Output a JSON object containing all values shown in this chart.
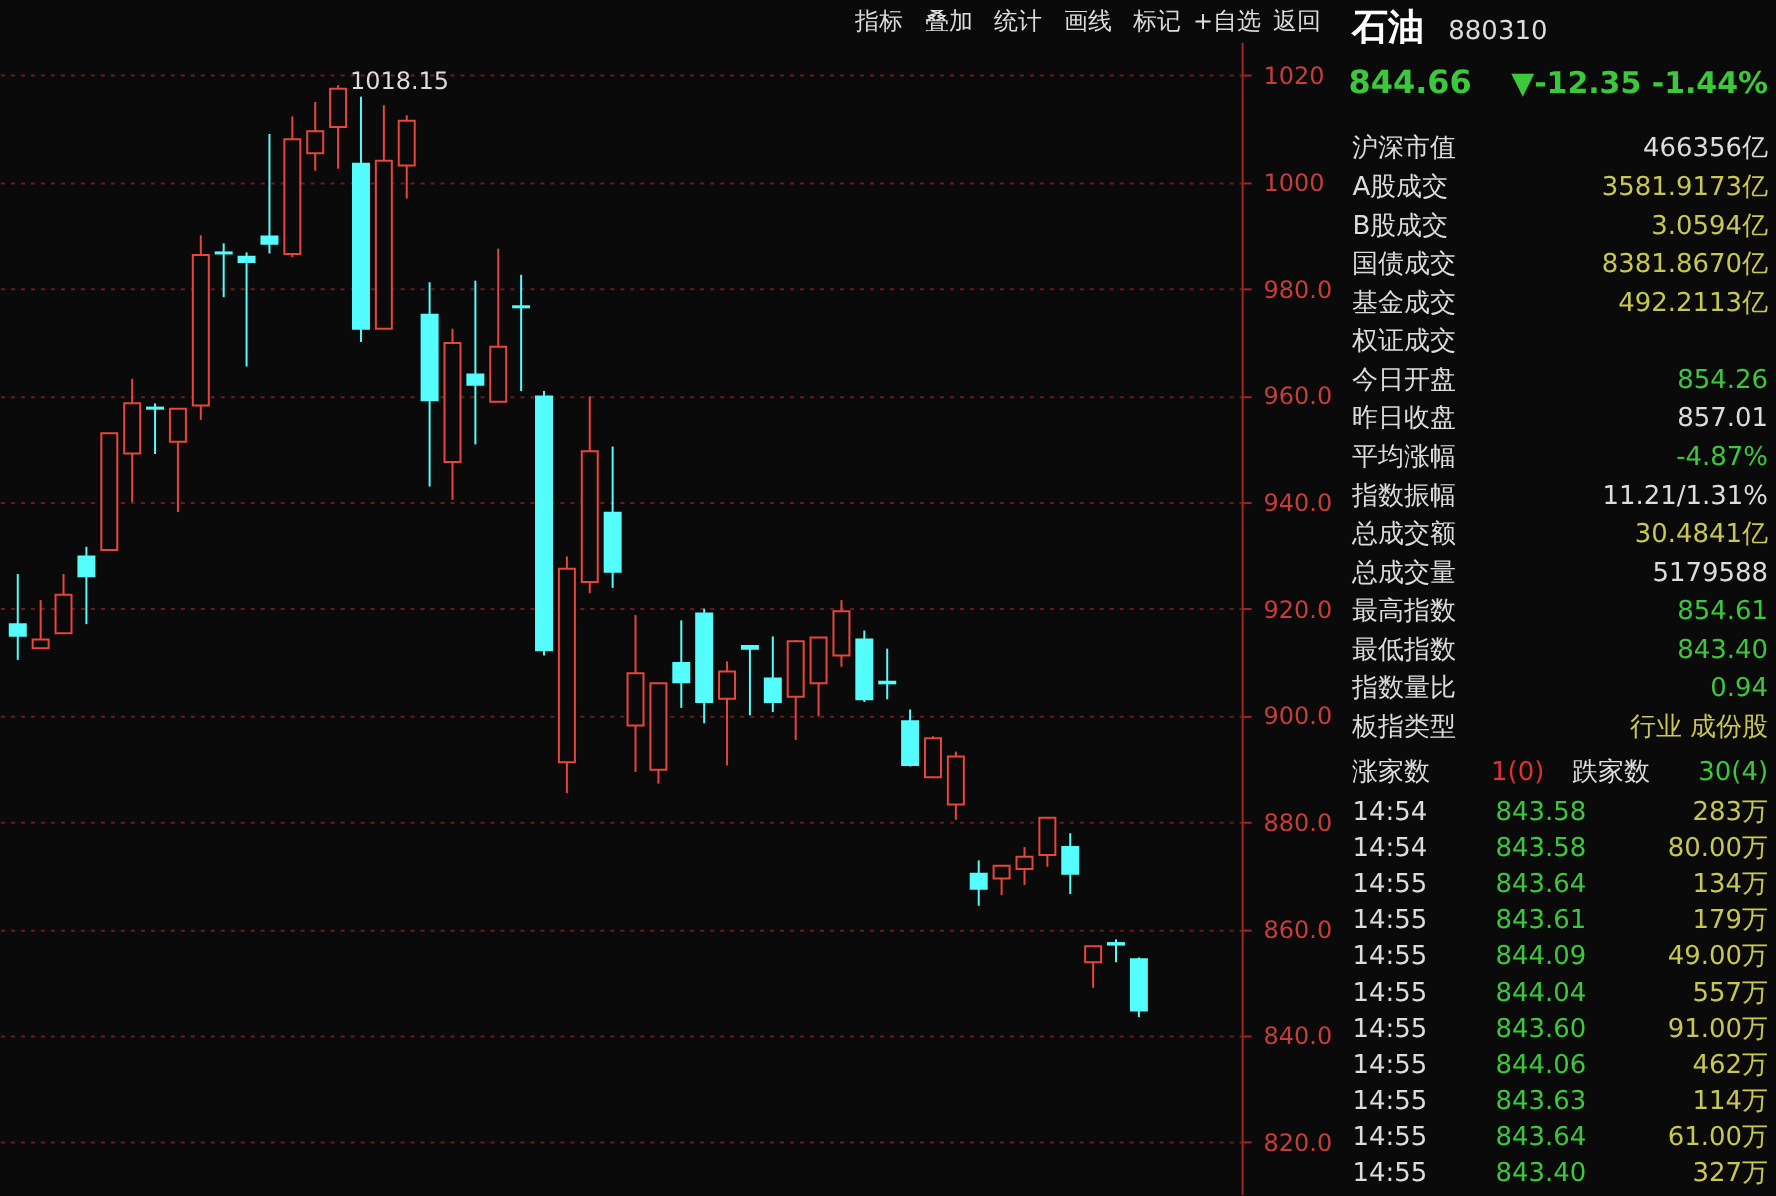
{
  "chart_data": [
    {
      "type": "candlestick",
      "categories": [
        null,
        null,
        null,
        null,
        null,
        null,
        null,
        null,
        null,
        null,
        null,
        null,
        null,
        null,
        null,
        null,
        null,
        null,
        null,
        null,
        null,
        null,
        null,
        null,
        null,
        null,
        null,
        null,
        null,
        null,
        null,
        null,
        null,
        null,
        null,
        null,
        null,
        null,
        null,
        null,
        null,
        null,
        null,
        null,
        null,
        null,
        null,
        null,
        null,
        null
      ],
      "ohlc": [
        [
          917.1,
          926.5,
          910.4,
          914.9
        ],
        [
          912.6,
          921.6,
          912.6,
          914.2
        ],
        [
          915.4,
          926.5,
          915.4,
          922.6
        ],
        [
          929.8,
          931.6,
          917.1,
          926.1
        ],
        [
          931.0,
          952.9,
          931.0,
          952.9
        ],
        [
          949.1,
          963.1,
          940.0,
          958.5
        ],
        [
          957.7,
          958.5,
          949.0,
          957.5
        ],
        [
          951.3,
          957.5,
          938.1,
          957.5
        ],
        [
          958.1,
          990.0,
          955.4,
          986.3
        ],
        [
          986.8,
          988.5,
          978.4,
          986.6
        ],
        [
          986.0,
          986.8,
          965.4,
          985.0
        ],
        [
          989.8,
          1009.0,
          986.6,
          988.4
        ],
        [
          986.5,
          1012.3,
          985.9,
          1008.0
        ],
        [
          1005.4,
          1015.0,
          1002.1,
          1009.5
        ],
        [
          1010.3,
          1018.15,
          1002.5,
          1017.5
        ],
        [
          1003.4,
          1016.0,
          970.0,
          972.5
        ],
        [
          972.5,
          1014.4,
          972.5,
          1004.0
        ],
        [
          1003.1,
          1012.5,
          996.9,
          1011.5
        ],
        [
          975.1,
          981.2,
          942.9,
          959.1
        ],
        [
          947.5,
          972.5,
          940.4,
          969.8
        ],
        [
          963.9,
          981.5,
          950.8,
          962.0
        ],
        [
          958.8,
          987.5,
          958.8,
          969.1
        ],
        [
          976.7,
          982.6,
          960.8,
          976.5
        ],
        [
          959.8,
          960.8,
          911.2,
          912.2
        ],
        [
          891.2,
          929.8,
          885.4,
          927.5
        ],
        [
          925.0,
          959.8,
          922.9,
          949.5
        ],
        [
          938.0,
          950.4,
          923.9,
          926.9
        ],
        [
          898.1,
          918.8,
          889.4,
          907.9
        ],
        [
          889.8,
          906.0,
          887.2,
          906.0
        ],
        [
          909.8,
          917.8,
          901.4,
          906.2
        ],
        [
          919.1,
          920.0,
          898.5,
          902.5
        ],
        [
          903.1,
          910.1,
          890.6,
          908.2
        ],
        [
          913.0,
          913.1,
          900.0,
          912.5
        ],
        [
          906.9,
          914.8,
          900.6,
          902.5
        ],
        [
          903.5,
          914.1,
          895.4,
          913.9
        ],
        [
          906.0,
          914.6,
          899.8,
          914.6
        ],
        [
          911.2,
          921.6,
          909.1,
          919.5
        ],
        [
          914.2,
          915.9,
          902.5,
          903.0
        ],
        [
          906.3,
          912.5,
          903.0,
          906.0
        ],
        [
          898.9,
          901.1,
          890.4,
          890.7
        ],
        [
          888.4,
          896.1,
          888.2,
          895.7
        ],
        [
          883.3,
          893.2,
          880.4,
          892.3
        ],
        [
          870.3,
          872.8,
          864.3,
          867.5
        ],
        [
          869.4,
          871.8,
          866.3,
          871.8
        ],
        [
          871.2,
          875.3,
          868.2,
          873.5
        ],
        [
          873.8,
          880.8,
          871.6,
          880.8
        ],
        [
          875.3,
          877.9,
          866.5,
          870.3
        ],
        [
          853.7,
          856.7,
          848.9,
          856.7
        ],
        [
          857.3,
          858.0,
          853.7,
          857.01
        ],
        [
          854.26,
          854.61,
          843.4,
          844.66
        ]
      ],
      "colors": [
        "#54fcfc",
        "#e8453c",
        "#e8453c",
        "#54fcfc",
        "#e8453c",
        "#e8453c",
        "#54fcfc",
        "#e8453c",
        "#e8453c",
        "#54fcfc",
        "#54fcfc",
        "#54fcfc",
        "#e8453c",
        "#e8453c",
        "#e8453c",
        "#54fcfc",
        "#e8453c",
        "#e8453c",
        "#54fcfc",
        "#e8453c",
        "#54fcfc",
        "#e8453c",
        "#54fcfc",
        "#54fcfc",
        "#e8453c",
        "#e8453c",
        "#54fcfc",
        "#e8453c",
        "#e8453c",
        "#54fcfc",
        "#54fcfc",
        "#e8453c",
        "#54fcfc",
        "#54fcfc",
        "#e8453c",
        "#e8453c",
        "#e8453c",
        "#54fcfc",
        "#54fcfc",
        "#54fcfc",
        "#e8453c",
        "#e8453c",
        "#54fcfc",
        "#e8453c",
        "#e8453c",
        "#e8453c",
        "#54fcfc",
        "#e8453c",
        "#54fcfc",
        "#54fcfc"
      ],
      "ylim": [
        810,
        1034
      ],
      "yticks": [
        {
          "value": 820,
          "label": "820.0"
        },
        {
          "value": 840,
          "label": "840.0"
        },
        {
          "value": 860,
          "label": "860.0"
        },
        {
          "value": 880,
          "label": "880.0"
        },
        {
          "value": 900,
          "label": "900.0"
        },
        {
          "value": 920,
          "label": "920.0"
        },
        {
          "value": 940,
          "label": "940.0"
        },
        {
          "value": 960,
          "label": "960.0"
        },
        {
          "value": 980,
          "label": "980.0"
        },
        1000,
        1020
      ],
      "grid": "y",
      "annotations": [
        "1018.15",
        "指标",
        "叠加",
        "统计",
        "画线",
        "标记",
        "+自选",
        "返回"
      ]
    },
    {
      "type": "other",
      "title": "石油",
      "subtitle": "880310",
      "annotations": [
        "844.66",
        "▼-12.35 -1.44%"
      ],
      "categories": [
        "沪深市值",
        "A股成交",
        "B股成交",
        "国债成交",
        "基金成交",
        "权证成交",
        "今日开盘",
        "昨日收盘",
        "平均涨幅",
        "指数振幅",
        "总成交额",
        "总成交量",
        "最高指数",
        "最低指数",
        "指数量比",
        "板指类型"
      ],
      "value_labels": [
        "466356亿",
        "3581.9173亿",
        "3.0594亿",
        "8381.8670亿",
        "492.2113亿",
        null,
        "854.26",
        "857.01",
        "-4.87%",
        "11.21/1.31%",
        "30.4841亿",
        "5179588",
        "854.61",
        "843.40",
        "0.94",
        "行业 成份股"
      ]
    },
    {
      "type": "other",
      "annotations": [
        "涨家数",
        "1(0)",
        "跌家数",
        "30(4)",
        "14:54",
        "843.58",
        "283万",
        "14:54",
        "843.58",
        "80.00万",
        "14:55",
        "843.64",
        "134万",
        "14:55",
        "843.61",
        "179万",
        "14:55",
        "844.09",
        "49.00万",
        "14:55",
        "844.04",
        "557万",
        "14:55",
        "843.60",
        "91.00万",
        "14:55",
        "844.06",
        "462万",
        "14:55",
        "843.63",
        "114万",
        "14:55",
        "843.64",
        "61.00万",
        "14:55",
        "843.40",
        "327万"
      ]
    }
  ]
}
